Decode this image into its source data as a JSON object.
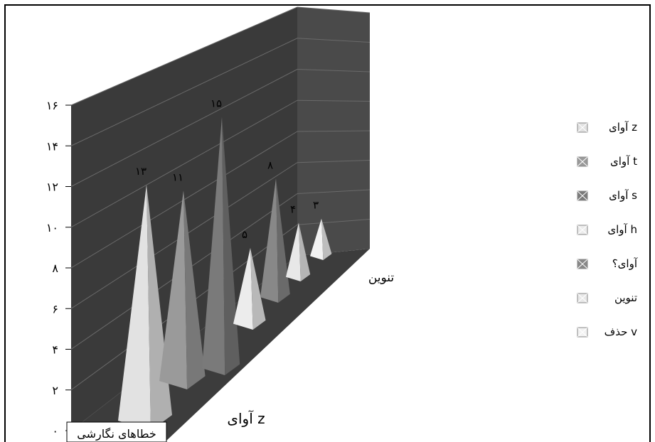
{
  "chart_data": {
    "type": "bar",
    "style": "3d-pyramid",
    "series": [
      {
        "name": "آوای z",
        "value": 13,
        "label": "۱۳",
        "color": "#e2e2e2"
      },
      {
        "name": "آوای t",
        "value": 11,
        "label": "۱۱",
        "color": "#9a9a9a"
      },
      {
        "name": "آوای s",
        "value": 15,
        "label": "۱۵",
        "color": "#7a7a7a"
      },
      {
        "name": "آوای h",
        "value": 5,
        "label": "۵",
        "color": "#ececec"
      },
      {
        "name": "آوای؟",
        "value": 8,
        "label": "۸",
        "color": "#888888"
      },
      {
        "name": "تنوین",
        "value": 4,
        "label": "۴",
        "color": "#e8e8e8"
      },
      {
        "name": "حذف v",
        "value": 3,
        "label": "۳",
        "color": "#f2f2f2"
      }
    ],
    "y_ticks": [
      "۰",
      "۲",
      "۴",
      "۶",
      "۸",
      "۱۰",
      "۱۲",
      "۱۴",
      "۱۶"
    ],
    "ylim": [
      0,
      16
    ],
    "category_labels": [
      "خطاهای نگارشی",
      "آوای z",
      "تنوین"
    ],
    "grid": true,
    "legend_position": "right"
  }
}
